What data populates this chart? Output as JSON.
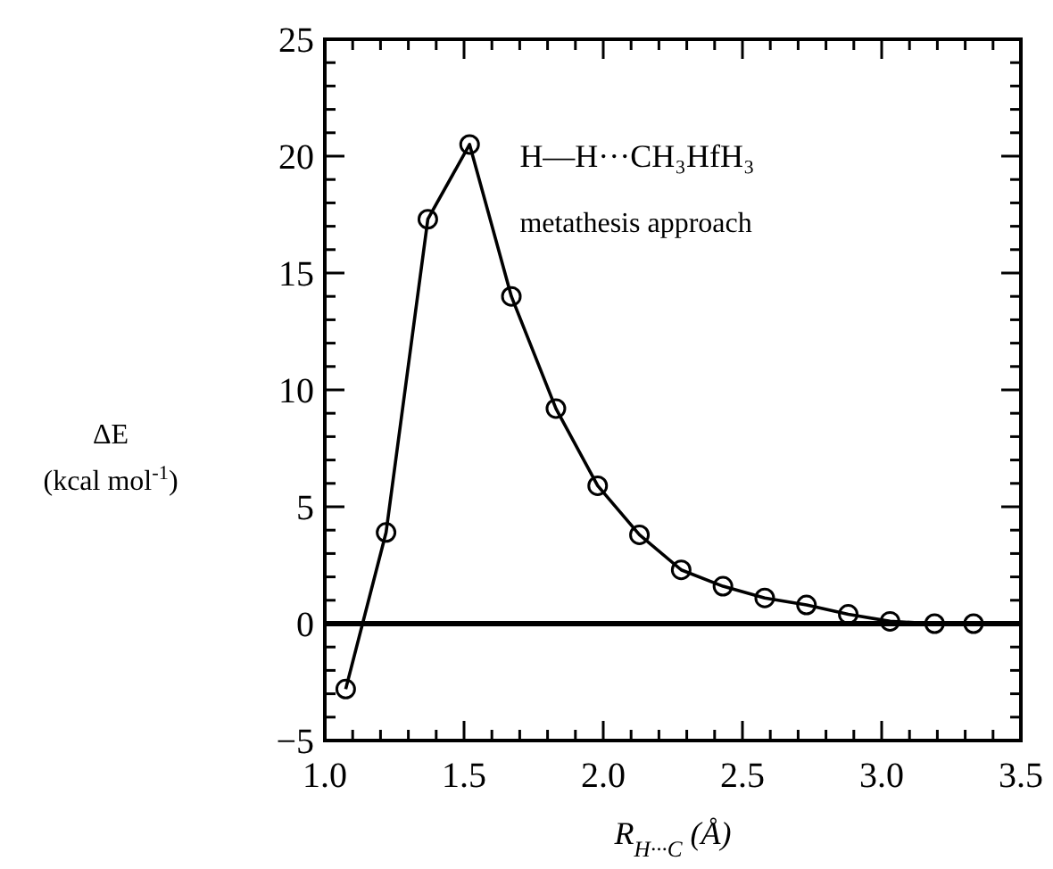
{
  "chart_data": {
    "type": "line",
    "xlabel": "R$_{H···C}$ (Å)",
    "ylabel": "ΔE (kcal mol$^{-1}$)",
    "annotations": [
      "H—H···CH₃HfH₃",
      "metathesis approach"
    ],
    "series": [
      {
        "color": "#000000",
        "x": [
          1.075,
          1.22,
          1.37,
          1.52,
          1.67,
          1.83,
          1.98,
          2.13,
          2.28,
          2.43,
          2.58,
          2.73,
          2.88,
          3.03,
          3.19,
          3.33
        ],
        "values": [
          -2.8,
          3.9,
          17.3,
          20.5,
          14.0,
          9.2,
          5.9,
          3.8,
          2.3,
          1.6,
          1.1,
          0.8,
          0.4,
          0.1,
          0.0,
          0.0
        ]
      }
    ],
    "marker": "circle",
    "line_style": "solid",
    "ref_lines": [
      {
        "axis": "y",
        "value": 0,
        "color": "#000000"
      }
    ],
    "xlim": [
      1.0,
      3.5
    ],
    "ylim": [
      -5,
      25
    ],
    "xticks": [
      {
        "value": 1.0,
        "label": "1.0"
      },
      {
        "value": 1.1,
        "label": null
      },
      {
        "value": 1.2,
        "label": null
      },
      {
        "value": 1.3,
        "label": null
      },
      {
        "value": 1.4,
        "label": null
      },
      {
        "value": 1.5,
        "label": "1.5"
      },
      {
        "value": 1.6,
        "label": null
      },
      {
        "value": 1.7,
        "label": null
      },
      {
        "value": 1.8,
        "label": null
      },
      {
        "value": 1.9,
        "label": null
      },
      {
        "value": 2.0,
        "label": "2.0"
      },
      {
        "value": 2.1,
        "label": null
      },
      {
        "value": 2.2,
        "label": null
      },
      {
        "value": 2.3,
        "label": null
      },
      {
        "value": 2.4,
        "label": null
      },
      {
        "value": 2.5,
        "label": "2.5"
      },
      {
        "value": 2.6,
        "label": null
      },
      {
        "value": 2.7,
        "label": null
      },
      {
        "value": 2.8,
        "label": null
      },
      {
        "value": 2.9,
        "label": null
      },
      {
        "value": 3.0,
        "label": "3.0"
      },
      {
        "value": 3.1,
        "label": null
      },
      {
        "value": 3.2,
        "label": null
      },
      {
        "value": 3.3,
        "label": null
      },
      {
        "value": 3.4,
        "label": null
      },
      {
        "value": 3.5,
        "label": "3.5"
      }
    ],
    "yticks": [
      -5,
      {
        "value": -4,
        "label": null
      },
      {
        "value": -3,
        "label": null
      },
      {
        "value": -2,
        "label": null
      },
      {
        "value": -1,
        "label": null
      },
      0,
      {
        "value": 1,
        "label": null
      },
      {
        "value": 2,
        "label": null
      },
      {
        "value": 3,
        "label": null
      },
      {
        "value": 4,
        "label": null
      },
      5,
      {
        "value": 6,
        "label": null
      },
      {
        "value": 7,
        "label": null
      },
      {
        "value": 8,
        "label": null
      },
      {
        "value": 9,
        "label": null
      },
      10,
      {
        "value": 11,
        "label": null
      },
      {
        "value": 12,
        "label": null
      },
      {
        "value": 13,
        "label": null
      },
      {
        "value": 14,
        "label": null
      },
      15,
      {
        "value": 16,
        "label": null
      },
      {
        "value": 17,
        "label": null
      },
      {
        "value": 18,
        "label": null
      },
      {
        "value": 19,
        "label": null
      },
      20,
      {
        "value": 21,
        "label": null
      },
      {
        "value": 22,
        "label": null
      },
      {
        "value": 23,
        "label": null
      },
      {
        "value": 24,
        "label": null
      },
      25
    ],
    "grid": false
  }
}
